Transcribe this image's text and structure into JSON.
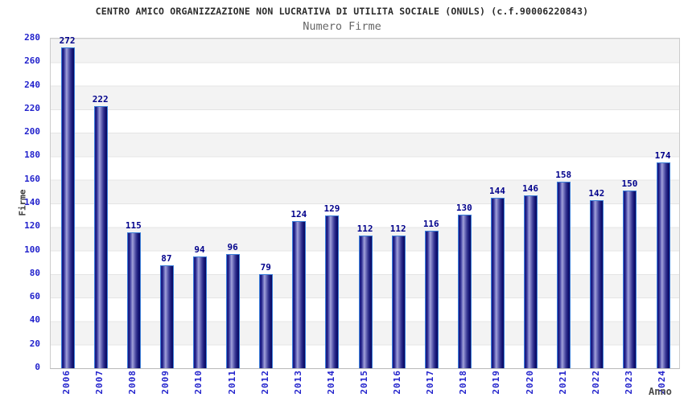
{
  "page": {
    "title": "CENTRO AMICO ORGANIZZAZIONE NON LUCRATIVA DI UTILITA SOCIALE (ONULS) (c.f.90006220843)",
    "subtitle": "Numero Firme"
  },
  "chart_data": {
    "type": "bar",
    "title": "Numero Firme",
    "categories": [
      "2006",
      "2007",
      "2008",
      "2009",
      "2010",
      "2011",
      "2012",
      "2013",
      "2014",
      "2015",
      "2016",
      "2017",
      "2018",
      "2019",
      "2020",
      "2021",
      "2022",
      "2023",
      "2024"
    ],
    "values": [
      272,
      222,
      115,
      87,
      94,
      96,
      79,
      124,
      129,
      112,
      112,
      116,
      130,
      144,
      146,
      158,
      142,
      150,
      174
    ],
    "xlabel": "Anno",
    "ylabel": "Firme",
    "ylim": [
      0,
      280
    ],
    "yticks": [
      0,
      20,
      40,
      60,
      80,
      100,
      120,
      140,
      160,
      180,
      200,
      220,
      240,
      260,
      280
    ],
    "grid": "alternating horizontal bands every 20 units, gray band at top",
    "legend": "none",
    "bar_value_labels_shown": true
  },
  "colors": {
    "title_text": "#2b2b2b",
    "subtitle_text": "#666666",
    "axis_tick_text": "#2222cc",
    "bar_value_text": "#00008b",
    "bar_gradient_dark": "#08085e",
    "bar_gradient_light": "#a2a2da",
    "bar_border": "#3a7ed8",
    "band_gray": "#f3f3f3",
    "plot_border": "#cccccc",
    "axis_title_text": "#3a3a3a"
  }
}
